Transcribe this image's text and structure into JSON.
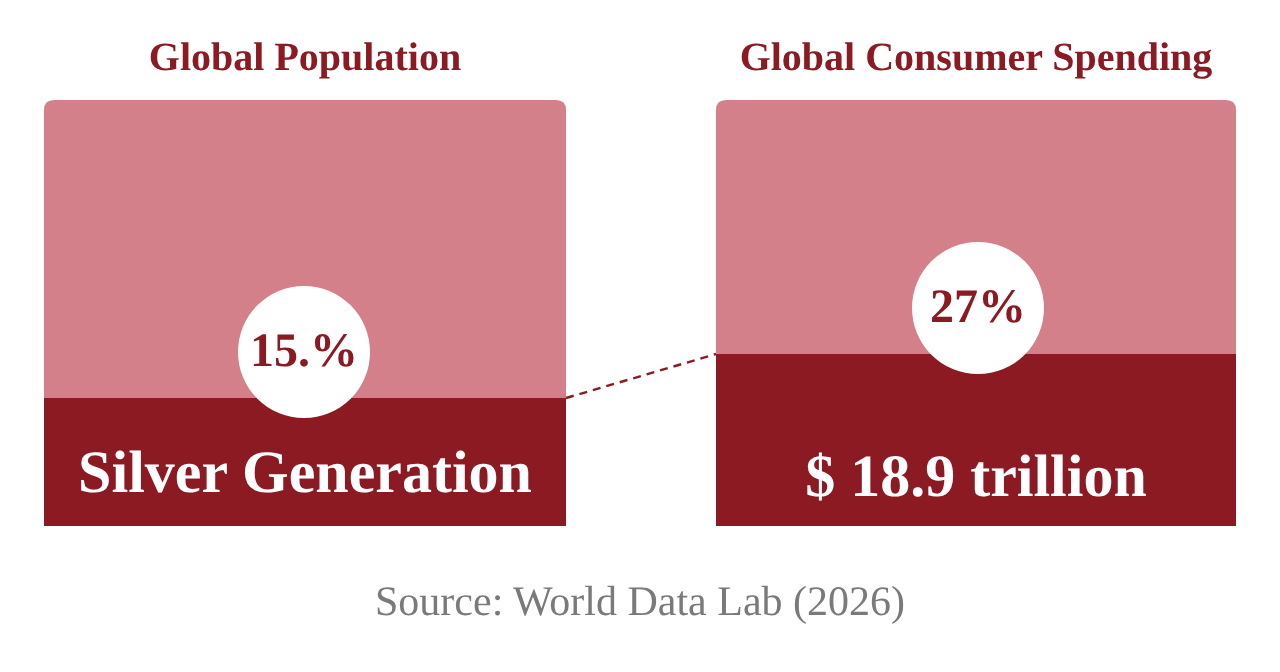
{
  "chart_data": {
    "type": "other",
    "categories": [
      "Global Population",
      "Global Consumer Spending"
    ],
    "values": [
      15,
      27
    ],
    "value_labels": [
      "15.%",
      "27%"
    ],
    "annotations": [
      {
        "text": "Silver Generation",
        "x": "Global Population"
      },
      {
        "text": "$ 18.9 trillion",
        "x": "Global Consumer Spending"
      },
      "Source: World Data Lab (2026)"
    ]
  }
}
